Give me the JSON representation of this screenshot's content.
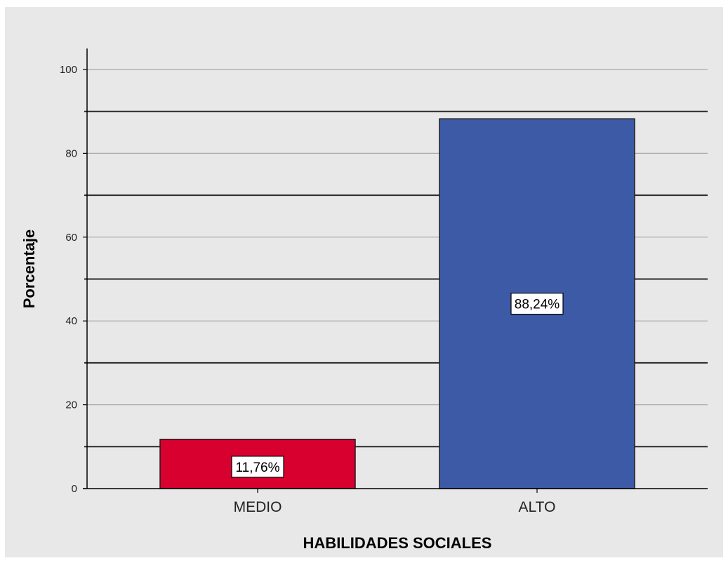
{
  "chart_data": {
    "type": "bar",
    "categories": [
      "MEDIO",
      "ALTO"
    ],
    "values": [
      11.76,
      88.24
    ],
    "data_labels": [
      "11,76%",
      "88,24%"
    ],
    "bar_colors": [
      "#d7002e",
      "#3d5aa7"
    ],
    "xlabel": "HABILIDADES SOCIALES",
    "ylabel": "Porcentaje",
    "ylim": [
      0,
      105
    ],
    "yticks": [
      0,
      20,
      40,
      60,
      80,
      100
    ],
    "ytick_labels": [
      "0",
      "20",
      "40",
      "60",
      "80",
      "100"
    ],
    "major_gridlines": [
      10,
      30,
      50,
      70,
      90
    ],
    "minor_gridlines": [
      20,
      40,
      60,
      80,
      100
    ],
    "grid": true,
    "background_color": "#e8e8e8"
  }
}
